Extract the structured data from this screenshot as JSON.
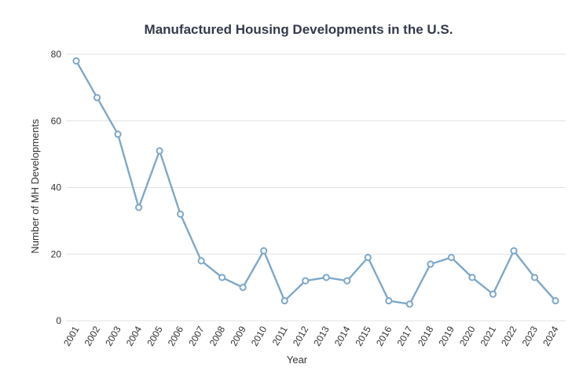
{
  "chart_data": {
    "type": "line",
    "title": "Manufactured Housing Developments in the U.S.",
    "xlabel": "Year",
    "ylabel": "Number of MH Developments",
    "ylim": [
      0,
      80
    ],
    "yticks": [
      0,
      20,
      40,
      60,
      80
    ],
    "grid": true,
    "categories": [
      "2001",
      "2002",
      "2003",
      "2004",
      "2005",
      "2006",
      "2007",
      "2008",
      "2009",
      "2010",
      "2011",
      "2012",
      "2013",
      "2014",
      "2015",
      "2016",
      "2017",
      "2018",
      "2019",
      "2020",
      "2021",
      "2022",
      "2023",
      "2024"
    ],
    "series": [
      {
        "color": "#7fa8c9",
        "values": [
          78,
          67,
          56,
          34,
          51,
          32,
          18,
          13,
          10,
          21,
          6,
          12,
          13,
          12,
          19,
          6,
          5,
          17,
          19,
          13,
          8,
          21,
          13,
          6
        ]
      }
    ]
  }
}
